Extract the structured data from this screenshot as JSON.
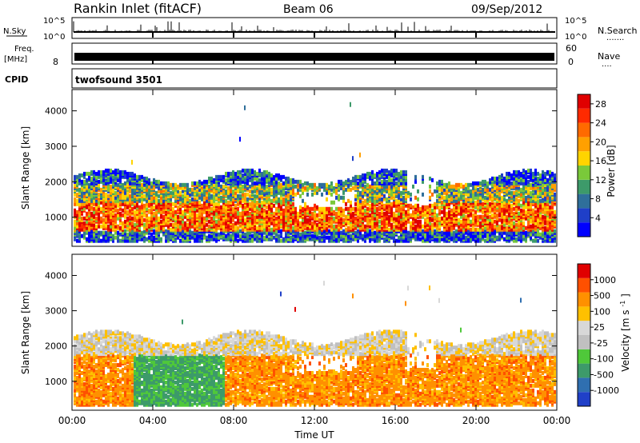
{
  "header": {
    "station": "Rankin Inlet (fitACF)",
    "beam": "Beam 06",
    "date": "09/Sep/2012"
  },
  "nsky_panel": {
    "left_label": "N.Sky",
    "right_label": "N.Search",
    "right_dots": ".......",
    "left_ticks": [
      "10^5",
      "10^0"
    ],
    "right_ticks": [
      "10^5",
      "10^0"
    ]
  },
  "freq_panel": {
    "left_label_top": "Freq.",
    "left_label_unit": "[MHz]",
    "right_label": "Nave",
    "right_dots": "....",
    "left_ticks": [
      "8"
    ],
    "right_ticks": [
      "60",
      "0"
    ]
  },
  "cpid": {
    "label": "CPID",
    "value": "twofsound 3501"
  },
  "colors": {
    "power": [
      "#0000ff",
      "#1f3fc8",
      "#2f6f9a",
      "#3d9a6a",
      "#7ac93a",
      "#ffd400",
      "#ffa000",
      "#ff6a00",
      "#ff2a00",
      "#e00000"
    ],
    "velocity": [
      "#2040c8",
      "#2f6fb0",
      "#3d9a6a",
      "#4fc83a",
      "#c0c0c0",
      "#d8d8d8",
      "#ffc000",
      "#ff9000",
      "#ff5000",
      "#e00000"
    ]
  },
  "chart_data": [
    {
      "type": "heatmap",
      "title": "",
      "xlabel": "",
      "ylabel": "Slant Range [km]",
      "x_ticks": [
        "00:00",
        "04:00",
        "08:00",
        "12:00",
        "16:00",
        "20:00",
        "00:00"
      ],
      "xlim_hours": [
        0,
        24
      ],
      "y_ticks": [
        "1000",
        "2000",
        "3000",
        "4000"
      ],
      "ylim": [
        180,
        4600
      ],
      "colorbar": {
        "label": "Power [dB]",
        "ticks": [
          "4",
          "8",
          "12",
          "16",
          "20",
          "24",
          "28"
        ],
        "range": [
          0,
          30
        ]
      },
      "scatter_band_km": [
        400,
        2300
      ],
      "dense_band_km": [
        600,
        1800
      ]
    },
    {
      "type": "heatmap",
      "title": "",
      "xlabel": "Time UT",
      "ylabel": "Slant Range [km]",
      "x_ticks": [
        "00:00",
        "04:00",
        "08:00",
        "12:00",
        "16:00",
        "20:00",
        "00:00"
      ],
      "xlim_hours": [
        0,
        24
      ],
      "y_ticks": [
        "1000",
        "2000",
        "3000",
        "4000"
      ],
      "ylim": [
        180,
        4600
      ],
      "colorbar": {
        "label": "Velocity [m s^-1]",
        "ticks": [
          "1000",
          "500",
          "100",
          "25",
          "-25",
          "-100",
          "-500",
          "-1000"
        ],
        "range": [
          -1000,
          1000
        ]
      },
      "scatter_band_km": [
        400,
        2400
      ],
      "ground_scatter_band_km": [
        1700,
        2300
      ]
    }
  ]
}
